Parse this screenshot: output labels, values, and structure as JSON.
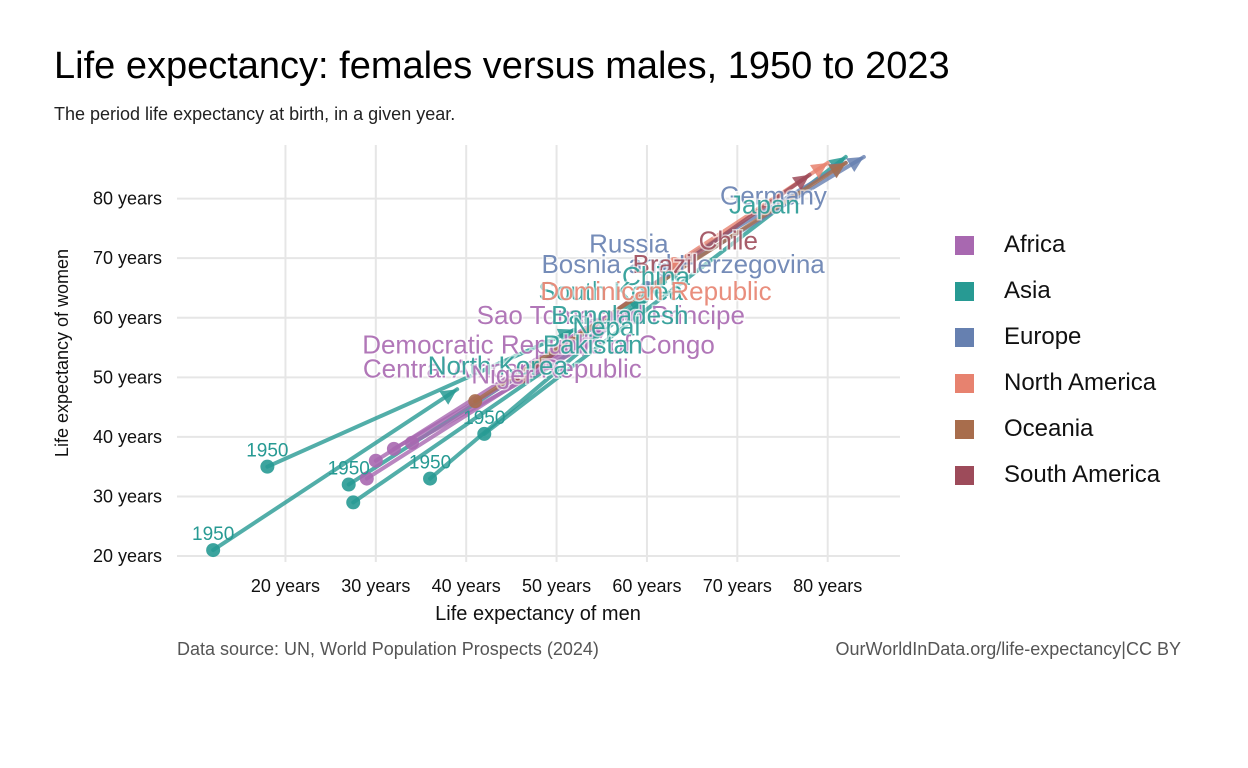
{
  "title": "Life expectancy: females versus males, 1950 to 2023",
  "subtitle": "The period life expectancy at birth, in a given year.",
  "source": "Data source: UN, World Population Prospects (2024)",
  "credit": "OurWorldInData.org/life-expectancy|CC BY",
  "legend": [
    {
      "label": "Africa",
      "color": "#a868b0"
    },
    {
      "label": "Asia",
      "color": "#279a93"
    },
    {
      "label": "Europe",
      "color": "#6680b0"
    },
    {
      "label": "North America",
      "color": "#e7826f"
    },
    {
      "label": "Oceania",
      "color": "#a86d4c"
    },
    {
      "label": "South America",
      "color": "#9d4b5a"
    }
  ],
  "chart_data": {
    "type": "scatter",
    "title": "Life expectancy: females versus males, 1950 to 2023",
    "xlabel": "Life expectancy of men",
    "ylabel": "Life expectancy of women",
    "xlim": [
      8,
      88
    ],
    "ylim": [
      19,
      89
    ],
    "xticks": [
      20,
      30,
      40,
      50,
      60,
      70,
      80
    ],
    "yticks": [
      20,
      30,
      40,
      50,
      60,
      70,
      80
    ],
    "tick_suffix": " years",
    "grid": true,
    "legend_position": "right",
    "start_label": "1950",
    "series": [
      {
        "name": "Asia",
        "start": [
          12,
          21
        ],
        "end": [
          39,
          48
        ],
        "start_label": "1950"
      },
      {
        "name": "Asia",
        "start": [
          18,
          35
        ],
        "end": [
          52,
          58
        ],
        "start_label": "1950"
      },
      {
        "name": "Asia",
        "start": [
          27,
          32
        ],
        "end": [
          62,
          66
        ],
        "start_label": "1950"
      },
      {
        "name": "Asia",
        "start": [
          27.5,
          29
        ],
        "end": [
          60,
          63
        ]
      },
      {
        "name": "Asia",
        "start": [
          36,
          33
        ],
        "end": [
          64,
          69
        ],
        "start_label": "1950"
      },
      {
        "name": "Asia",
        "start": [
          42,
          40.5
        ],
        "end": [
          82,
          87
        ],
        "start_label": "1950"
      },
      {
        "name": "Africa",
        "start": [
          29,
          33
        ],
        "end": [
          58,
          61
        ]
      },
      {
        "name": "Africa",
        "start": [
          30,
          36
        ],
        "end": [
          55,
          60
        ]
      },
      {
        "name": "Africa",
        "start": [
          32,
          38
        ],
        "end": [
          56,
          59
        ]
      },
      {
        "name": "Africa",
        "start": [
          34,
          39
        ],
        "end": [
          54,
          56
        ]
      },
      {
        "name": "Europe",
        "start": [
          60,
          65
        ],
        "end": [
          84,
          87
        ]
      },
      {
        "name": "Europe",
        "start": [
          62,
          68
        ],
        "end": [
          82,
          86
        ]
      },
      {
        "name": "North America",
        "start": [
          63,
          69
        ],
        "end": [
          80,
          86
        ]
      },
      {
        "name": "South America",
        "start": [
          46,
          50
        ],
        "end": [
          78,
          84
        ]
      },
      {
        "name": "Oceania",
        "start": [
          41,
          46
        ],
        "end": [
          82,
          86
        ]
      }
    ],
    "labels": [
      {
        "text": "Germany",
        "x": 74,
        "y": 80.5,
        "group": "Europe"
      },
      {
        "text": "Japan",
        "x": 73,
        "y": 79,
        "group": "Asia"
      },
      {
        "text": "Chile",
        "x": 69,
        "y": 73,
        "group": "South America"
      },
      {
        "text": "Russia",
        "x": 58,
        "y": 72.5,
        "group": "Europe"
      },
      {
        "text": "Bosnia and Herzegovina",
        "x": 64,
        "y": 69,
        "group": "Europe"
      },
      {
        "text": "Brazil",
        "x": 62,
        "y": 69,
        "group": "South America"
      },
      {
        "text": "China",
        "x": 61,
        "y": 67,
        "group": "Asia"
      },
      {
        "text": "South Korea",
        "x": 56,
        "y": 64.5,
        "group": "Asia"
      },
      {
        "text": "Dominican Republic",
        "x": 61,
        "y": 64.5,
        "group": "North America"
      },
      {
        "text": "Sao Tome and Principe",
        "x": 56,
        "y": 60.5,
        "group": "Africa"
      },
      {
        "text": "Bangladesh",
        "x": 57,
        "y": 60.5,
        "group": "Asia"
      },
      {
        "text": "Nepal",
        "x": 55.5,
        "y": 58.5,
        "group": "Asia"
      },
      {
        "text": "Democratic Republic of Congo",
        "x": 48,
        "y": 55.5,
        "group": "Africa"
      },
      {
        "text": "Pakistan",
        "x": 54,
        "y": 55.5,
        "group": "Asia"
      },
      {
        "text": "Central African Republic",
        "x": 44,
        "y": 51.5,
        "group": "Africa"
      },
      {
        "text": "North Korea",
        "x": 43.5,
        "y": 52,
        "group": "Asia"
      },
      {
        "text": "Niger",
        "x": 44,
        "y": 50.5,
        "group": "Africa"
      }
    ]
  }
}
